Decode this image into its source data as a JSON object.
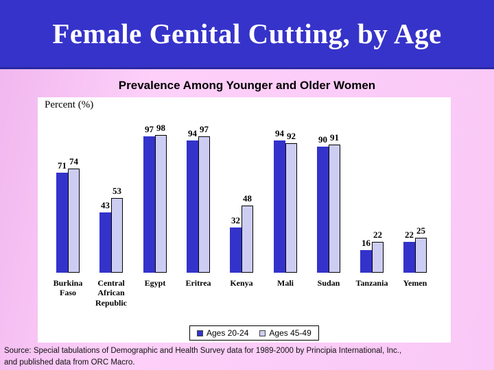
{
  "header": {
    "title": "Female Genital Cutting, by Age"
  },
  "chart_data": {
    "type": "bar",
    "title": "Prevalence Among Younger and Older Women",
    "xlabel": "",
    "ylabel": "Percent (%)",
    "ylim": [
      0,
      100
    ],
    "grid": false,
    "legend_position": "bottom",
    "categories": [
      "Burkina\nFaso",
      "Central\nAfrican\nRepublic",
      "Egypt",
      "Eritrea",
      "Kenya",
      "Mali",
      "Sudan",
      "Tanzania",
      "Yemen"
    ],
    "series": [
      {
        "name": "Ages 20-24",
        "color": "#3333cb",
        "values": [
          71,
          43,
          97,
          94,
          32,
          94,
          90,
          16,
          22
        ]
      },
      {
        "name": "Ages 45-49",
        "color": "#cdcdf4",
        "values": [
          74,
          53,
          98,
          97,
          48,
          92,
          91,
          22,
          25
        ]
      }
    ]
  },
  "colors": {
    "title_band": "#3633ca",
    "title_band_border": "#2a28a2",
    "background_pink": "#fac8f6",
    "panel_white": "#ffffff",
    "series_dark": "#3333cb",
    "series_light": "#cdcdf4"
  },
  "footer": {
    "source_line1": "Source: Special tabulations of Demographic and Health Survey data for 1989-2000 by Principia International, Inc.,",
    "source_line2": "and published data from ORC Macro."
  }
}
